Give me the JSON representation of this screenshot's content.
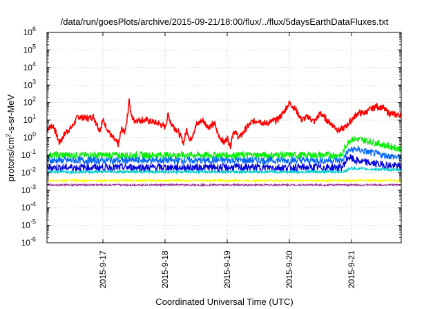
{
  "chart_data": {
    "type": "line",
    "title": "/data/run/goesPlots/archive/2015-09-21/18:00/flux/../flux/5daysEarthDataFluxes.txt",
    "xlabel": "Coordinated Universal Time (UTC)",
    "ylabel": {
      "base": "protons/cm",
      "sup": "2",
      "rest": "-s-sr-MeV"
    },
    "yscale": "log",
    "ylim_exp": [
      -6,
      6
    ],
    "y_tick_exponents": [
      "-6",
      "-5",
      "-4",
      "-3",
      "-2",
      "-1",
      "0",
      "1",
      "2",
      "3",
      "4",
      "5",
      "6"
    ],
    "y_tick_base": "10",
    "xlim_days": [
      16.1,
      21.8
    ],
    "x_ticks": [
      {
        "label": "2015-9-17",
        "day": 17
      },
      {
        "label": "2015-9-18",
        "day": 18
      },
      {
        "label": "2015-9-19",
        "day": 19
      },
      {
        "label": "2015-9-20",
        "day": 20
      },
      {
        "label": "2015-9-21",
        "day": 21
      }
    ],
    "grid": true,
    "legend": "none",
    "series": [
      {
        "color": "#ff0000",
        "noise": 0.18,
        "points": [
          [
            16.1,
            0.5
          ],
          [
            16.2,
            0.7
          ],
          [
            16.3,
            -0.3
          ],
          [
            16.4,
            0.3
          ],
          [
            16.5,
            0.6
          ],
          [
            16.6,
            1.2
          ],
          [
            16.75,
            1.1
          ],
          [
            16.85,
            1.2
          ],
          [
            16.95,
            0.4
          ],
          [
            17.0,
            1.0
          ],
          [
            17.1,
            0.3
          ],
          [
            17.15,
            0.0
          ],
          [
            17.25,
            -0.4
          ],
          [
            17.3,
            0.5
          ],
          [
            17.35,
            0.3
          ],
          [
            17.4,
            1.3
          ],
          [
            17.42,
            2.3
          ],
          [
            17.45,
            1.3
          ],
          [
            17.5,
            1.0
          ],
          [
            17.7,
            1.0
          ],
          [
            17.9,
            0.8
          ],
          [
            18.0,
            0.6
          ],
          [
            18.05,
            1.3
          ],
          [
            18.1,
            0.8
          ],
          [
            18.2,
            0.4
          ],
          [
            18.3,
            -0.3
          ],
          [
            18.35,
            0.5
          ],
          [
            18.4,
            -0.2
          ],
          [
            18.5,
            0.7
          ],
          [
            18.6,
            1.0
          ],
          [
            18.7,
            0.6
          ],
          [
            18.8,
            0.8
          ],
          [
            18.85,
            0.2
          ],
          [
            18.95,
            -0.3
          ],
          [
            19.0,
            0.0
          ],
          [
            19.05,
            -0.5
          ],
          [
            19.1,
            0.4
          ],
          [
            19.2,
            0.0
          ],
          [
            19.3,
            0.5
          ],
          [
            19.4,
            0.9
          ],
          [
            19.5,
            1.0
          ],
          [
            19.6,
            0.8
          ],
          [
            19.7,
            0.9
          ],
          [
            19.8,
            1.0
          ],
          [
            19.9,
            1.4
          ],
          [
            20.0,
            2.0
          ],
          [
            20.05,
            1.8
          ],
          [
            20.1,
            1.6
          ],
          [
            20.2,
            1.0
          ],
          [
            20.3,
            1.2
          ],
          [
            20.4,
            0.9
          ],
          [
            20.5,
            1.4
          ],
          [
            20.6,
            1.0
          ],
          [
            20.7,
            0.7
          ],
          [
            20.8,
            0.4
          ],
          [
            20.9,
            0.6
          ],
          [
            21.0,
            1.0
          ],
          [
            21.1,
            1.4
          ],
          [
            21.2,
            1.4
          ],
          [
            21.3,
            1.6
          ],
          [
            21.4,
            1.8
          ],
          [
            21.5,
            1.7
          ],
          [
            21.6,
            1.4
          ],
          [
            21.7,
            1.3
          ],
          [
            21.8,
            1.3
          ]
        ]
      },
      {
        "color": "#00ee00",
        "noise": 0.2,
        "points": [
          [
            16.1,
            -1.0
          ],
          [
            16.5,
            -1.0
          ],
          [
            17.0,
            -1.0
          ],
          [
            17.5,
            -1.0
          ],
          [
            18.0,
            -1.0
          ],
          [
            18.5,
            -1.0
          ],
          [
            19.0,
            -1.0
          ],
          [
            19.5,
            -1.0
          ],
          [
            20.0,
            -1.0
          ],
          [
            20.5,
            -1.0
          ],
          [
            20.85,
            -1.0
          ],
          [
            20.9,
            -0.5
          ],
          [
            21.0,
            -0.05
          ],
          [
            21.2,
            -0.15
          ],
          [
            21.4,
            -0.3
          ],
          [
            21.6,
            -0.5
          ],
          [
            21.8,
            -0.65
          ]
        ]
      },
      {
        "color": "#0066ff",
        "noise": 0.2,
        "points": [
          [
            16.1,
            -1.3
          ],
          [
            16.5,
            -1.3
          ],
          [
            17.0,
            -1.3
          ],
          [
            17.5,
            -1.3
          ],
          [
            18.0,
            -1.3
          ],
          [
            18.5,
            -1.3
          ],
          [
            19.0,
            -1.3
          ],
          [
            19.5,
            -1.3
          ],
          [
            20.0,
            -1.3
          ],
          [
            20.5,
            -1.3
          ],
          [
            20.85,
            -1.3
          ],
          [
            20.95,
            -0.75
          ],
          [
            21.05,
            -0.65
          ],
          [
            21.3,
            -0.85
          ],
          [
            21.5,
            -1.0
          ],
          [
            21.8,
            -1.15
          ]
        ]
      },
      {
        "color": "#0000dd",
        "noise": 0.22,
        "points": [
          [
            16.1,
            -1.7
          ],
          [
            16.5,
            -1.7
          ],
          [
            17.0,
            -1.7
          ],
          [
            17.5,
            -1.7
          ],
          [
            18.0,
            -1.7
          ],
          [
            18.5,
            -1.7
          ],
          [
            19.0,
            -1.7
          ],
          [
            19.5,
            -1.7
          ],
          [
            20.0,
            -1.7
          ],
          [
            20.5,
            -1.7
          ],
          [
            20.85,
            -1.7
          ],
          [
            20.95,
            -1.1
          ],
          [
            21.05,
            -1.3
          ],
          [
            21.3,
            -1.45
          ],
          [
            21.5,
            -1.55
          ],
          [
            21.8,
            -1.65
          ]
        ]
      },
      {
        "color": "#00cccc",
        "noise": 0.08,
        "points": [
          [
            16.1,
            -1.95
          ],
          [
            16.5,
            -1.95
          ],
          [
            17.0,
            -1.95
          ],
          [
            17.5,
            -1.95
          ],
          [
            18.0,
            -1.95
          ],
          [
            18.5,
            -1.95
          ],
          [
            19.0,
            -1.95
          ],
          [
            19.5,
            -1.95
          ],
          [
            20.0,
            -1.95
          ],
          [
            20.5,
            -1.95
          ],
          [
            20.85,
            -1.95
          ],
          [
            21.0,
            -1.75
          ],
          [
            21.3,
            -1.8
          ],
          [
            21.8,
            -1.85
          ]
        ]
      },
      {
        "color": "#ffff00",
        "noise": 0.06,
        "points": [
          [
            16.1,
            -2.45
          ],
          [
            17.0,
            -2.45
          ],
          [
            18.0,
            -2.45
          ],
          [
            19.0,
            -2.45
          ],
          [
            20.0,
            -2.45
          ],
          [
            21.0,
            -2.45
          ],
          [
            21.8,
            -2.45
          ]
        ]
      },
      {
        "color": "#993399",
        "noise": 0.05,
        "points": [
          [
            16.1,
            -2.7
          ],
          [
            17.0,
            -2.7
          ],
          [
            18.0,
            -2.7
          ],
          [
            19.0,
            -2.7
          ],
          [
            20.0,
            -2.7
          ],
          [
            21.0,
            -2.7
          ],
          [
            21.8,
            -2.7
          ]
        ]
      }
    ]
  }
}
